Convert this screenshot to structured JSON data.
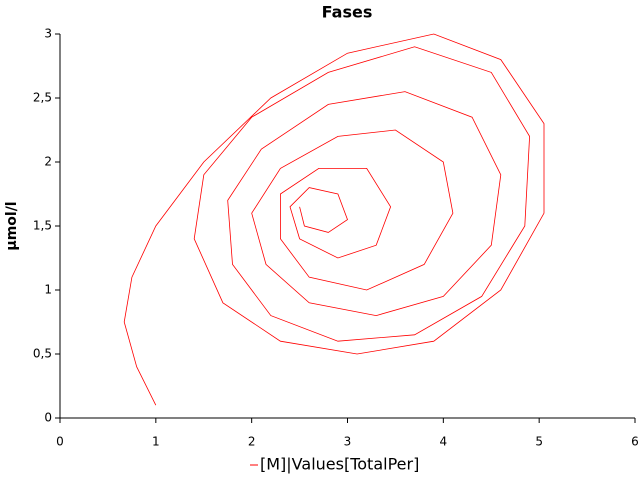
{
  "chart_data": {
    "type": "line",
    "title": "Fases",
    "y_label": "µmol/l",
    "xlim": [
      0,
      6
    ],
    "xticks": [
      0,
      1,
      2,
      3,
      4,
      5,
      6
    ],
    "ylim": [
      0,
      3
    ],
    "yticks": [
      0,
      {
        "value": 0.5,
        "label": "0,5"
      },
      1,
      {
        "value": 1.5,
        "label": "1,5"
      },
      2,
      {
        "value": 2.5,
        "label": "2,5"
      },
      3
    ],
    "series": [
      {
        "name": "[M]|Values[TotalPer]",
        "color": "#ff0000",
        "x": [
          1,
          0.8,
          0.67,
          0.75,
          1.0,
          1.5,
          2.2,
          3.0,
          3.9,
          4.6,
          5.05,
          5.05,
          4.6,
          3.9,
          3.1,
          2.3,
          1.7,
          1.4,
          1.5,
          2.0,
          2.8,
          3.7,
          4.5,
          4.9,
          4.85,
          4.4,
          3.7,
          2.9,
          2.2,
          1.8,
          1.75,
          2.1,
          2.8,
          3.6,
          4.3,
          4.6,
          4.5,
          4.0,
          3.3,
          2.6,
          2.15,
          2.0,
          2.3,
          2.9,
          3.5,
          4.0,
          4.1,
          3.8,
          3.2,
          2.6,
          2.3,
          2.3,
          2.7,
          3.2,
          3.45,
          3.3,
          2.9,
          2.5,
          2.4,
          2.6,
          2.9,
          3.0,
          2.8,
          2.55,
          2.5
        ],
        "values": [
          0.1,
          0.4,
          0.75,
          1.1,
          1.5,
          2.0,
          2.5,
          2.85,
          3.0,
          2.8,
          2.3,
          1.6,
          1.0,
          0.6,
          0.5,
          0.6,
          0.9,
          1.4,
          1.9,
          2.35,
          2.7,
          2.9,
          2.7,
          2.2,
          1.5,
          0.95,
          0.65,
          0.6,
          0.8,
          1.2,
          1.7,
          2.1,
          2.45,
          2.55,
          2.35,
          1.9,
          1.35,
          0.95,
          0.8,
          0.9,
          1.2,
          1.6,
          1.95,
          2.2,
          2.25,
          2.0,
          1.6,
          1.2,
          1.0,
          1.1,
          1.4,
          1.75,
          1.95,
          1.95,
          1.65,
          1.35,
          1.25,
          1.4,
          1.65,
          1.8,
          1.75,
          1.55,
          1.45,
          1.5,
          1.65
        ]
      }
    ],
    "legend": "bottom",
    "grid": false
  }
}
